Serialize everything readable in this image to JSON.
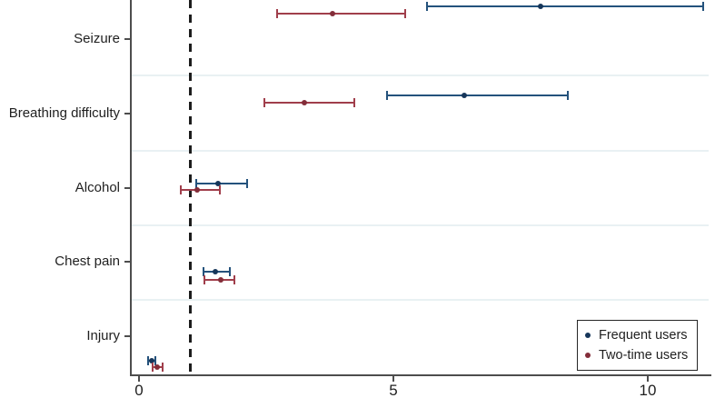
{
  "chart_data": {
    "type": "forest-errorbar",
    "title": "",
    "xlabel": "",
    "ylabel": "",
    "xlim": [
      0,
      11.2
    ],
    "x_ticks": [
      "0",
      "5",
      "10"
    ],
    "x_tick_values": [
      0,
      5,
      10
    ],
    "reference_line_x": 1,
    "grid": true,
    "categories": [
      "Seizure",
      "Breathing difficulty",
      "Alcohol",
      "Chest pain",
      "Injury"
    ],
    "series": [
      {
        "name": "Frequent users",
        "line_color": "#24527c",
        "dot_color": "#16365a",
        "points": [
          {
            "category": "Seizure",
            "estimate": 7.9,
            "ci_low": 5.65,
            "ci_high": 11.1
          },
          {
            "category": "Breathing difficulty",
            "estimate": 6.4,
            "ci_low": 4.85,
            "ci_high": 8.45
          },
          {
            "category": "Alcohol",
            "estimate": 1.55,
            "ci_low": 1.1,
            "ci_high": 2.15
          },
          {
            "category": "Chest pain",
            "estimate": 1.5,
            "ci_low": 1.25,
            "ci_high": 1.8
          },
          {
            "category": "Injury",
            "estimate": 0.25,
            "ci_low": 0.16,
            "ci_high": 0.34
          }
        ]
      },
      {
        "name": "Two-time users",
        "line_color": "#a03e4b",
        "dot_color": "#832d39",
        "points": [
          {
            "category": "Seizure",
            "estimate": 3.8,
            "ci_low": 2.7,
            "ci_high": 5.25
          },
          {
            "category": "Breathing difficulty",
            "estimate": 3.25,
            "ci_low": 2.45,
            "ci_high": 4.25
          },
          {
            "category": "Alcohol",
            "estimate": 1.15,
            "ci_low": 0.8,
            "ci_high": 1.6
          },
          {
            "category": "Chest pain",
            "estimate": 1.6,
            "ci_low": 1.27,
            "ci_high": 1.9
          },
          {
            "category": "Injury",
            "estimate": 0.36,
            "ci_low": 0.25,
            "ci_high": 0.48
          }
        ]
      }
    ],
    "legend": {
      "position": "bottom-right",
      "items": [
        "Frequent users",
        "Two-time users"
      ]
    }
  }
}
